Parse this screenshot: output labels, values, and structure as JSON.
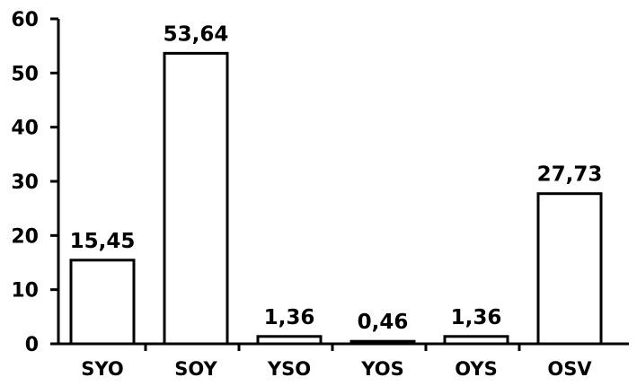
{
  "chart_data": {
    "type": "bar",
    "categories": [
      "SYO",
      "SOY",
      "YSO",
      "YOS",
      "OYS",
      "OSV"
    ],
    "values": [
      15.45,
      53.64,
      1.36,
      0.46,
      1.36,
      27.73
    ],
    "value_labels": [
      "15,45",
      "53,64",
      "1,36",
      "0,46",
      "1,36",
      "27,73"
    ],
    "title": "",
    "xlabel": "",
    "ylabel": "",
    "ylim": [
      0,
      60
    ],
    "yticks": [
      0,
      10,
      20,
      30,
      40,
      50,
      60
    ],
    "grid": false,
    "bar_fill": "#ffffff",
    "bar_stroke": "#000000"
  }
}
